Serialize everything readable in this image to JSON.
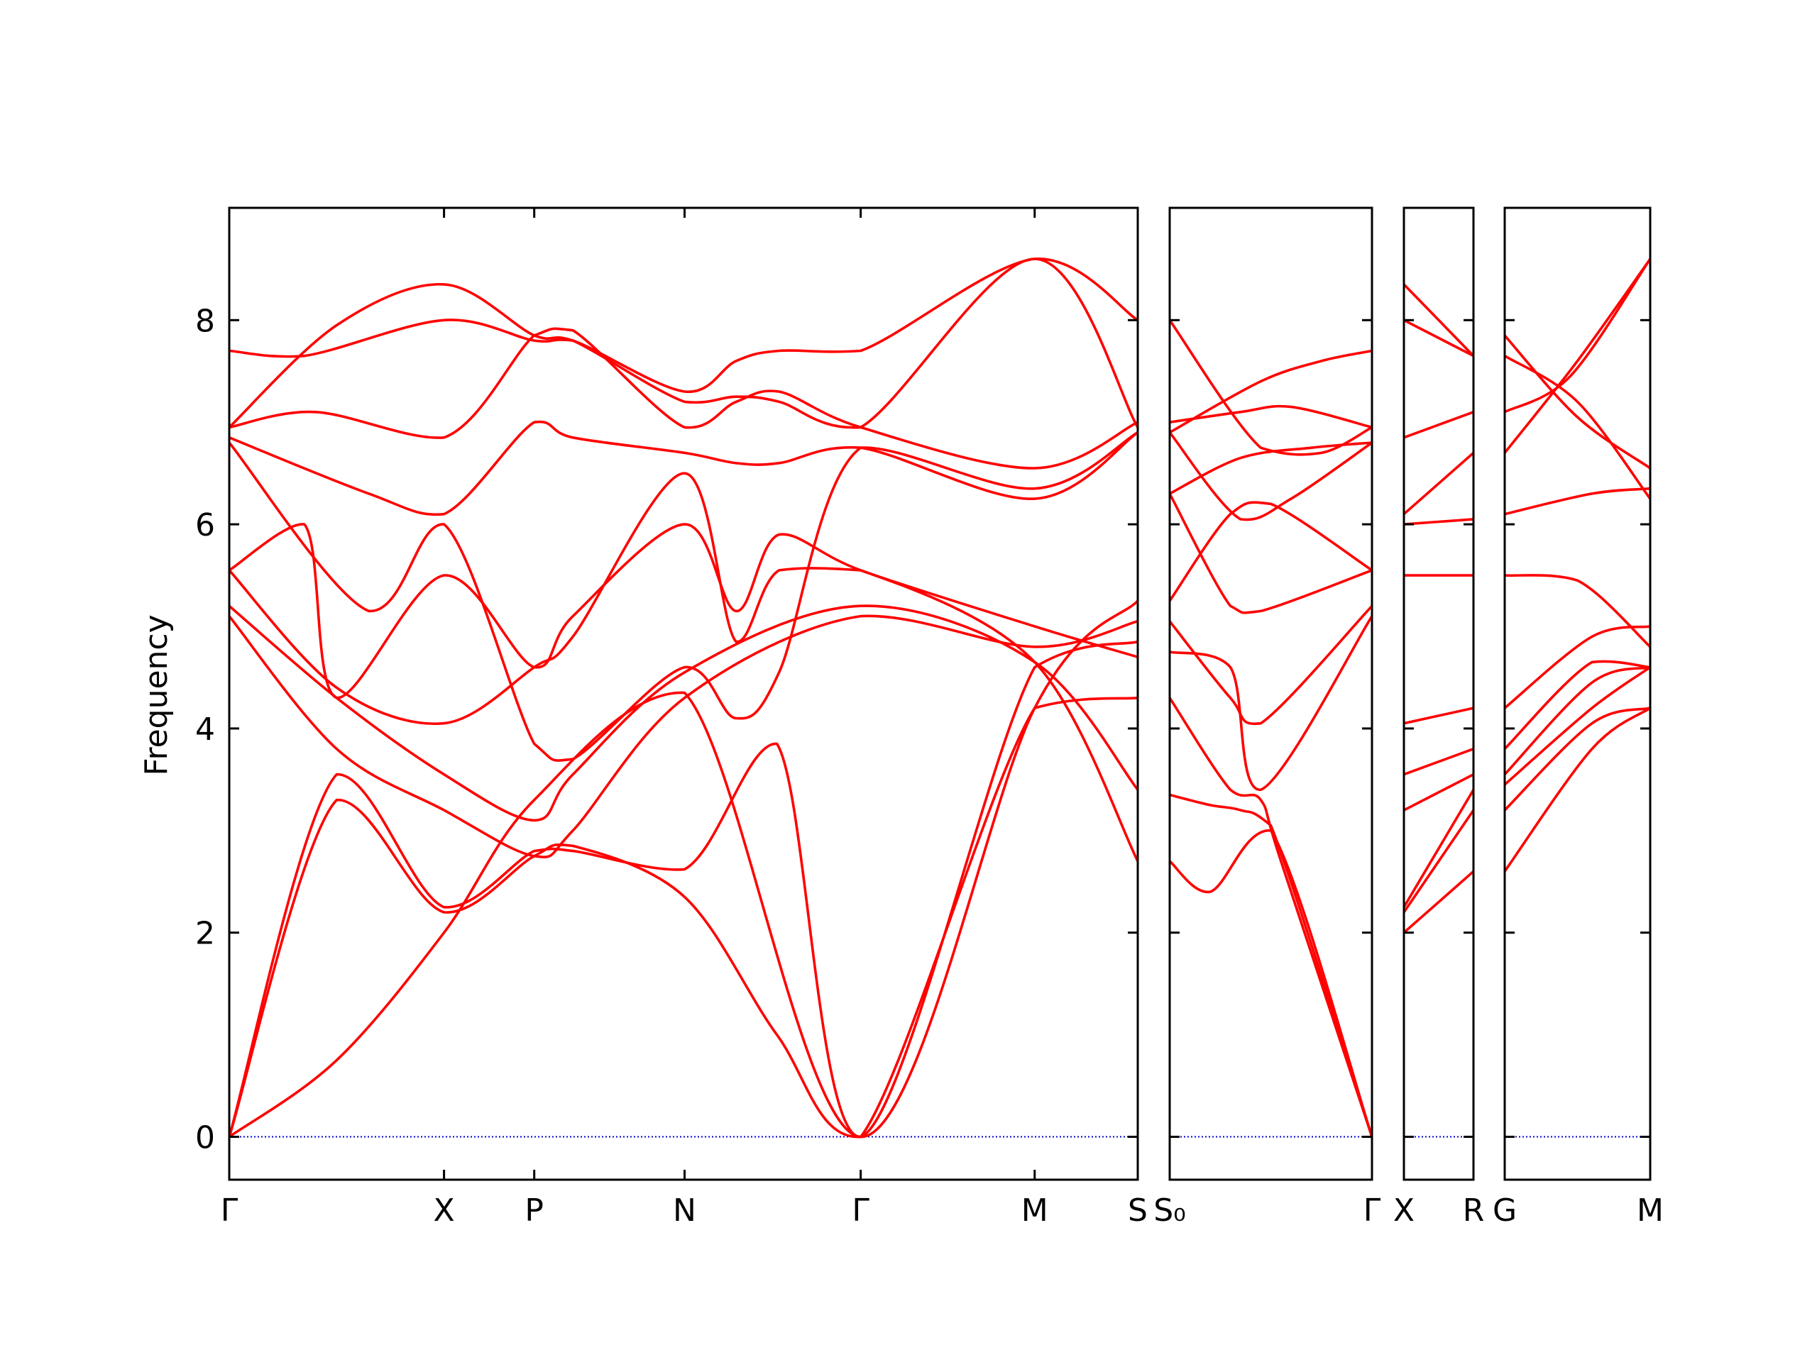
{
  "chart_data": {
    "type": "line",
    "ylabel": "Frequency",
    "ylim": [
      -0.42,
      9.1
    ],
    "yticks": [
      0,
      2,
      4,
      6,
      8
    ],
    "grid": false,
    "legend": "none",
    "colors": {
      "bands": "#ff0000",
      "zero_line": "#0000cc",
      "axes": "#000000"
    },
    "segments": [
      {
        "name": "Γ-X-P-N-Γ-M-S",
        "x_labels": [
          {
            "label": "Γ",
            "x": 0.0
          },
          {
            "label": "X",
            "x": 1.0
          },
          {
            "label": "P",
            "x": 1.42
          },
          {
            "label": "N",
            "x": 2.12
          },
          {
            "label": "Γ",
            "x": 2.94
          },
          {
            "label": "M",
            "x": 3.75
          },
          {
            "label": "S",
            "x": 4.23
          }
        ],
        "xlim": [
          0.0,
          4.23
        ],
        "bands": [
          [
            [
              0,
              0
            ],
            [
              0.5,
              0.75
            ],
            [
              1,
              2.0
            ],
            [
              1.42,
              3.3
            ],
            [
              2.12,
              4.35
            ],
            [
              2.94,
              0
            ],
            [
              3.75,
              4.2
            ],
            [
              4.23,
              5.25
            ]
          ],
          [
            [
              0,
              0
            ],
            [
              0.5,
              3.3
            ],
            [
              1,
              2.2
            ],
            [
              1.42,
              2.75
            ],
            [
              1.6,
              2.85
            ],
            [
              2.12,
              2.35
            ],
            [
              2.55,
              1.0
            ],
            [
              2.94,
              0
            ],
            [
              3.75,
              4.2
            ],
            [
              4.23,
              4.3
            ]
          ],
          [
            [
              0,
              0
            ],
            [
              0.5,
              3.55
            ],
            [
              1,
              2.25
            ],
            [
              1.42,
              2.8
            ],
            [
              1.6,
              2.8
            ],
            [
              2.12,
              2.62
            ],
            [
              2.55,
              3.85
            ],
            [
              2.94,
              0
            ],
            [
              3.75,
              4.6
            ],
            [
              4.23,
              4.85
            ]
          ],
          [
            [
              0,
              5.1
            ],
            [
              0.5,
              3.8
            ],
            [
              1,
              3.2
            ],
            [
              1.42,
              2.75
            ],
            [
              1.6,
              3.0
            ],
            [
              2.12,
              4.3
            ],
            [
              2.94,
              5.1
            ],
            [
              3.75,
              4.8
            ],
            [
              4.23,
              5.05
            ]
          ],
          [
            [
              0,
              5.2
            ],
            [
              0.5,
              4.3
            ],
            [
              1,
              3.55
            ],
            [
              1.42,
              3.1
            ],
            [
              1.6,
              3.55
            ],
            [
              2.12,
              4.55
            ],
            [
              2.94,
              5.2
            ],
            [
              3.75,
              4.65
            ],
            [
              4.23,
              3.4
            ]
          ],
          [
            [
              0,
              5.55
            ],
            [
              0.5,
              4.4
            ],
            [
              1,
              4.05
            ],
            [
              1.42,
              4.6
            ],
            [
              1.6,
              4.9
            ],
            [
              2.12,
              6.5
            ],
            [
              2.36,
              4.85
            ],
            [
              2.56,
              5.55
            ],
            [
              2.94,
              5.55
            ],
            [
              3.75,
              4.65
            ],
            [
              4.23,
              2.7
            ]
          ],
          [
            [
              0,
              5.55
            ],
            [
              0.35,
              6.0
            ],
            [
              0.5,
              4.3
            ],
            [
              1,
              5.5
            ],
            [
              1.42,
              4.6
            ],
            [
              1.6,
              5.1
            ],
            [
              2.12,
              6.0
            ],
            [
              2.36,
              5.15
            ],
            [
              2.56,
              5.9
            ],
            [
              2.94,
              5.55
            ],
            [
              3.75,
              5.0
            ],
            [
              4.23,
              4.7
            ]
          ],
          [
            [
              0,
              6.8
            ],
            [
              0.65,
              5.15
            ],
            [
              1,
              6.0
            ],
            [
              1.42,
              3.85
            ],
            [
              1.6,
              3.7
            ],
            [
              2.12,
              4.6
            ],
            [
              2.36,
              4.1
            ],
            [
              2.56,
              4.55
            ],
            [
              2.94,
              6.75
            ],
            [
              3.75,
              6.35
            ],
            [
              4.23,
              6.9
            ]
          ],
          [
            [
              0,
              6.85
            ],
            [
              0.65,
              6.3
            ],
            [
              1,
              6.1
            ],
            [
              1.42,
              7.0
            ],
            [
              1.6,
              6.85
            ],
            [
              2.12,
              6.7
            ],
            [
              2.36,
              6.6
            ],
            [
              2.56,
              6.6
            ],
            [
              2.94,
              6.75
            ],
            [
              3.75,
              6.25
            ],
            [
              4.23,
              6.9
            ]
          ],
          [
            [
              0,
              6.95
            ],
            [
              0.4,
              7.1
            ],
            [
              1,
              6.85
            ],
            [
              1.42,
              7.85
            ],
            [
              1.6,
              7.9
            ],
            [
              2.12,
              6.95
            ],
            [
              2.36,
              7.2
            ],
            [
              2.56,
              7.3
            ],
            [
              2.94,
              6.95
            ],
            [
              3.75,
              6.55
            ],
            [
              4.23,
              7.0
            ]
          ],
          [
            [
              0,
              6.95
            ],
            [
              0.5,
              7.95
            ],
            [
              1,
              8.35
            ],
            [
              1.42,
              7.85
            ],
            [
              1.6,
              7.8
            ],
            [
              2.12,
              7.2
            ],
            [
              2.36,
              7.25
            ],
            [
              2.56,
              7.2
            ],
            [
              2.94,
              6.95
            ],
            [
              3.75,
              8.6
            ],
            [
              4.23,
              6.95
            ]
          ],
          [
            [
              0,
              7.7
            ],
            [
              0.35,
              7.65
            ],
            [
              1,
              8.0
            ],
            [
              1.42,
              7.8
            ],
            [
              1.6,
              7.8
            ],
            [
              2.12,
              7.3
            ],
            [
              2.36,
              7.6
            ],
            [
              2.56,
              7.7
            ],
            [
              2.94,
              7.7
            ],
            [
              3.75,
              8.6
            ],
            [
              4.23,
              8.0
            ]
          ]
        ]
      },
      {
        "name": "S0-Γ",
        "x_labels": [
          {
            "label": "S₀",
            "x": 0.0
          },
          {
            "label": "Γ",
            "x": 1.0
          }
        ],
        "xlim": [
          0.0,
          1.0
        ],
        "bands": [
          [
            [
              0,
              2.7
            ],
            [
              0.2,
              2.4
            ],
            [
              0.5,
              3.0
            ],
            [
              1,
              0
            ]
          ],
          [
            [
              0,
              3.35
            ],
            [
              0.2,
              3.25
            ],
            [
              0.35,
              3.2
            ],
            [
              0.5,
              3.05
            ],
            [
              1,
              0
            ]
          ],
          [
            [
              0,
              4.3
            ],
            [
              0.3,
              3.4
            ],
            [
              0.45,
              3.3
            ],
            [
              0.55,
              2.7
            ],
            [
              1,
              0
            ]
          ],
          [
            [
              0,
              4.75
            ],
            [
              0.3,
              4.6
            ],
            [
              0.45,
              3.4
            ],
            [
              1,
              5.1
            ]
          ],
          [
            [
              0,
              5.05
            ],
            [
              0.3,
              4.3
            ],
            [
              0.45,
              4.05
            ],
            [
              1,
              5.2
            ]
          ],
          [
            [
              0,
              6.3
            ],
            [
              0.3,
              5.2
            ],
            [
              0.45,
              5.15
            ],
            [
              1,
              5.55
            ]
          ],
          [
            [
              0,
              5.25
            ],
            [
              0.3,
              6.1
            ],
            [
              0.5,
              6.2
            ],
            [
              1,
              5.55
            ]
          ],
          [
            [
              0,
              6.9
            ],
            [
              0.35,
              6.05
            ],
            [
              0.6,
              6.25
            ],
            [
              1,
              6.8
            ]
          ],
          [
            [
              0,
              6.3
            ],
            [
              0.35,
              6.65
            ],
            [
              0.7,
              6.75
            ],
            [
              1,
              6.8
            ]
          ],
          [
            [
              0,
              7.0
            ],
            [
              0.35,
              7.1
            ],
            [
              0.6,
              7.15
            ],
            [
              1,
              6.95
            ]
          ],
          [
            [
              0,
              8.0
            ],
            [
              0.45,
              6.75
            ],
            [
              0.75,
              6.7
            ],
            [
              1,
              6.95
            ]
          ],
          [
            [
              0,
              6.9
            ],
            [
              0.45,
              7.4
            ],
            [
              0.75,
              7.6
            ],
            [
              1,
              7.7
            ]
          ]
        ]
      },
      {
        "name": "X-R",
        "x_labels": [
          {
            "label": "X",
            "x": 0.0
          },
          {
            "label": "R",
            "x": 1.0
          }
        ],
        "xlim": [
          0.0,
          1.0
        ],
        "bands": [
          [
            [
              0,
              2.0
            ],
            [
              1,
              2.6
            ]
          ],
          [
            [
              0,
              2.2
            ],
            [
              1,
              3.2
            ]
          ],
          [
            [
              0,
              2.25
            ],
            [
              1,
              3.4
            ]
          ],
          [
            [
              0,
              3.2
            ],
            [
              1,
              3.55
            ]
          ],
          [
            [
              0,
              3.55
            ],
            [
              1,
              3.8
            ]
          ],
          [
            [
              0,
              4.05
            ],
            [
              1,
              4.2
            ]
          ],
          [
            [
              0,
              5.5
            ],
            [
              1,
              5.5
            ]
          ],
          [
            [
              0,
              6.0
            ],
            [
              1,
              6.05
            ]
          ],
          [
            [
              0,
              6.1
            ],
            [
              1,
              6.7
            ]
          ],
          [
            [
              0,
              6.85
            ],
            [
              1,
              7.1
            ]
          ],
          [
            [
              0,
              8.0
            ],
            [
              1,
              7.65
            ]
          ],
          [
            [
              0,
              8.35
            ],
            [
              1,
              7.65
            ]
          ]
        ]
      },
      {
        "name": "G-M",
        "x_labels": [
          {
            "label": "G",
            "x": 0.0
          },
          {
            "label": "M",
            "x": 1.0
          }
        ],
        "xlim": [
          0.0,
          1.0
        ],
        "bands": [
          [
            [
              0,
              2.6
            ],
            [
              0.6,
              3.8
            ],
            [
              1,
              4.2
            ]
          ],
          [
            [
              0,
              3.2
            ],
            [
              0.6,
              4.05
            ],
            [
              1,
              4.2
            ]
          ],
          [
            [
              0,
              3.45
            ],
            [
              0.6,
              4.2
            ],
            [
              1,
              4.6
            ]
          ],
          [
            [
              0,
              3.55
            ],
            [
              0.6,
              4.45
            ],
            [
              1,
              4.6
            ]
          ],
          [
            [
              0,
              3.8
            ],
            [
              0.6,
              4.65
            ],
            [
              1,
              4.6
            ]
          ],
          [
            [
              0,
              4.2
            ],
            [
              0.6,
              4.9
            ],
            [
              1,
              5.0
            ]
          ],
          [
            [
              0,
              5.5
            ],
            [
              0.5,
              5.45
            ],
            [
              1,
              4.8
            ]
          ],
          [
            [
              0,
              6.1
            ],
            [
              0.6,
              6.3
            ],
            [
              1,
              6.35
            ]
          ],
          [
            [
              0,
              6.7
            ],
            [
              0.5,
              7.6
            ],
            [
              1,
              8.6
            ]
          ],
          [
            [
              0,
              7.1
            ],
            [
              0.45,
              7.45
            ],
            [
              1,
              8.6
            ]
          ],
          [
            [
              0,
              7.65
            ],
            [
              0.5,
              7.2
            ],
            [
              1,
              6.25
            ]
          ],
          [
            [
              0,
              7.85
            ],
            [
              0.5,
              7.05
            ],
            [
              1,
              6.55
            ]
          ]
        ]
      }
    ]
  }
}
